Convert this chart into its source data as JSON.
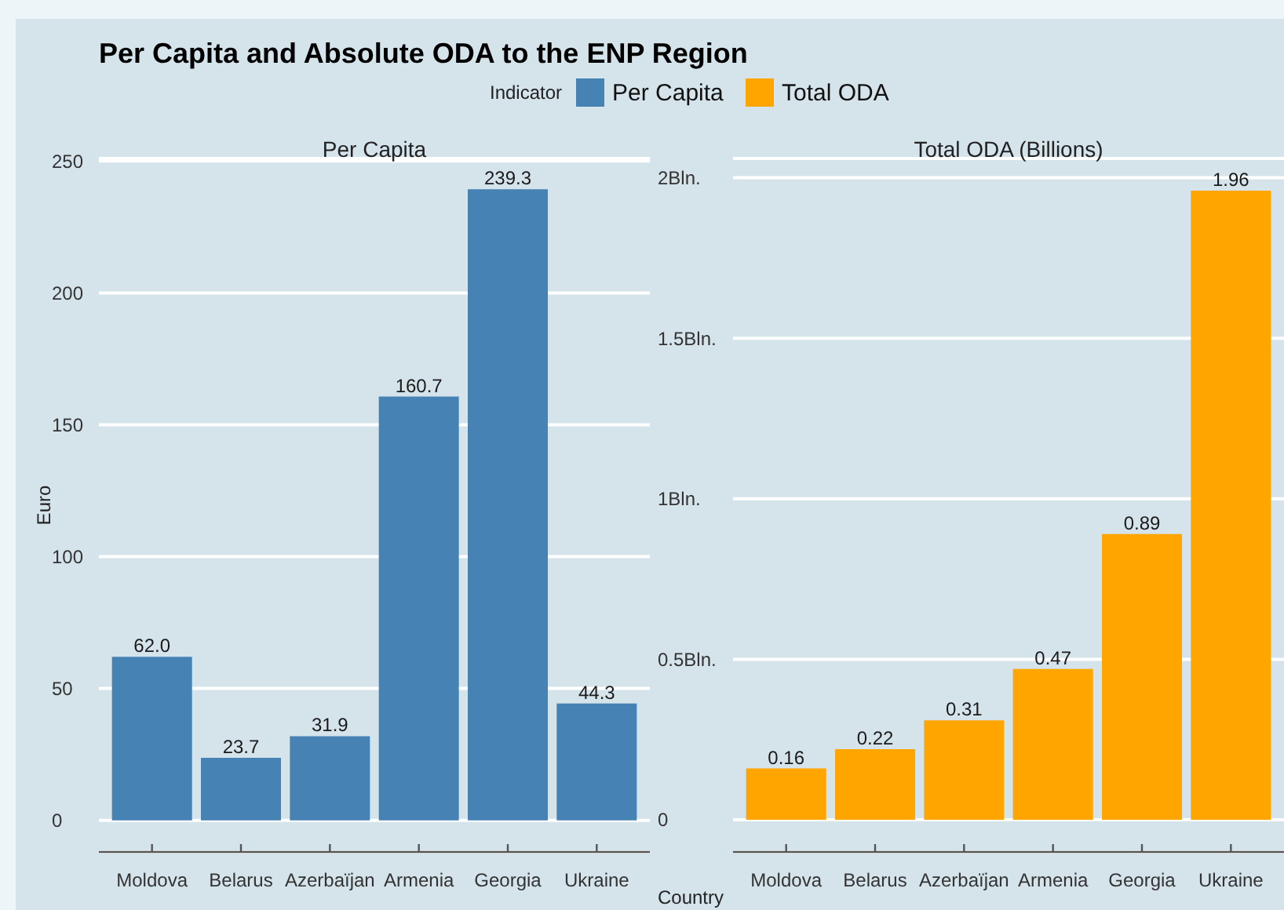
{
  "chart_data": [
    {
      "type": "bar",
      "title": "Per Capita and Absolute ODA to the ENP Region",
      "subtitle": "Per Capita",
      "xlabel": "Country",
      "ylabel": "Euro",
      "legend_title": "Indicator",
      "legend": "top",
      "grid": "y",
      "categories": [
        "Moldova",
        "Belarus",
        "Azerbaïjan",
        "Armenia",
        "Georgia",
        "Ukraine"
      ],
      "series": [
        {
          "name": "Per Capita",
          "color": "#4682b4",
          "values": [
            62.0,
            23.7,
            31.9,
            160.7,
            239.3,
            44.3
          ],
          "value_labels": [
            "62.0",
            "23.7",
            "31.9",
            "160.7",
            "239.3",
            "44.3"
          ]
        }
      ],
      "ylim": [
        -12,
        251
      ],
      "yticks": [
        0,
        50,
        100,
        150,
        200,
        250
      ]
    },
    {
      "type": "bar",
      "subtitle": "Total ODA (Billions)",
      "legend": "top",
      "grid": "y",
      "data_labels": true,
      "categories": [
        "Moldova",
        "Belarus",
        "Azerbaïjan",
        "Armenia",
        "Georgia",
        "Ukraine"
      ],
      "series": [
        {
          "name": "Total ODA",
          "color": "#ffa500",
          "values": [
            0.16,
            0.22,
            0.31,
            0.47,
            0.89,
            1.96
          ]
        }
      ],
      "ylim": [
        -0.1,
        2.06
      ],
      "yticks": [
        0,
        {
          "value": 0.5,
          "label": "0.5Bln."
        },
        {
          "value": 1,
          "label": "1Bln."
        },
        {
          "value": 1.5,
          "label": "1.5Bln."
        },
        {
          "value": 2,
          "label": "2Bln."
        }
      ]
    }
  ]
}
